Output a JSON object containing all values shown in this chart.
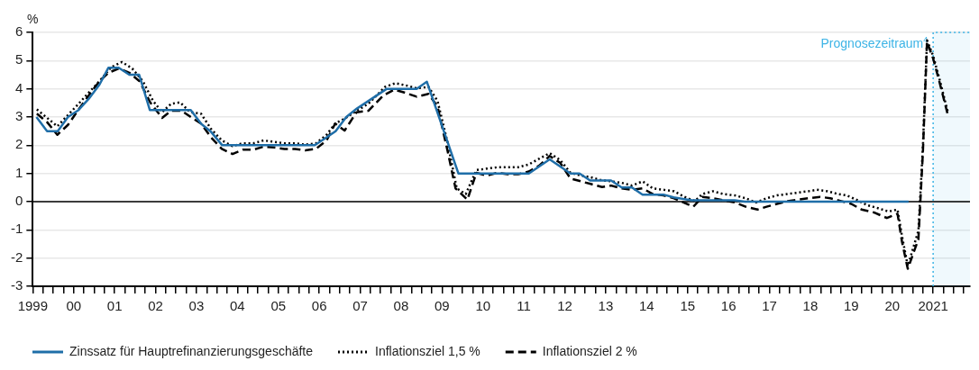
{
  "chart_data": {
    "type": "line",
    "ylabel": "%",
    "xlim": [
      1999,
      2021.9
    ],
    "ylim": [
      -3,
      6
    ],
    "yticks": [
      -3,
      -2,
      -1,
      0,
      1,
      2,
      3,
      4,
      5,
      6
    ],
    "xticks": [
      1999,
      {
        "value": 1999.25,
        "label": null
      },
      {
        "value": 1999.5,
        "label": null
      },
      {
        "value": 1999.75,
        "label": null
      },
      {
        "value": 2000,
        "label": "00"
      },
      {
        "value": 2000.25,
        "label": null
      },
      {
        "value": 2000.5,
        "label": null
      },
      {
        "value": 2000.75,
        "label": null
      },
      {
        "value": 2001,
        "label": "01"
      },
      {
        "value": 2001.25,
        "label": null
      },
      {
        "value": 2001.5,
        "label": null
      },
      {
        "value": 2001.75,
        "label": null
      },
      {
        "value": 2002,
        "label": "02"
      },
      {
        "value": 2002.25,
        "label": null
      },
      {
        "value": 2002.5,
        "label": null
      },
      {
        "value": 2002.75,
        "label": null
      },
      {
        "value": 2003,
        "label": "03"
      },
      {
        "value": 2003.25,
        "label": null
      },
      {
        "value": 2003.5,
        "label": null
      },
      {
        "value": 2003.75,
        "label": null
      },
      {
        "value": 2004,
        "label": "04"
      },
      {
        "value": 2004.25,
        "label": null
      },
      {
        "value": 2004.5,
        "label": null
      },
      {
        "value": 2004.75,
        "label": null
      },
      {
        "value": 2005,
        "label": "05"
      },
      {
        "value": 2005.25,
        "label": null
      },
      {
        "value": 2005.5,
        "label": null
      },
      {
        "value": 2005.75,
        "label": null
      },
      {
        "value": 2006,
        "label": "06"
      },
      {
        "value": 2006.25,
        "label": null
      },
      {
        "value": 2006.5,
        "label": null
      },
      {
        "value": 2006.75,
        "label": null
      },
      {
        "value": 2007,
        "label": "07"
      },
      {
        "value": 2007.25,
        "label": null
      },
      {
        "value": 2007.5,
        "label": null
      },
      {
        "value": 2007.75,
        "label": null
      },
      {
        "value": 2008,
        "label": "08"
      },
      {
        "value": 2008.25,
        "label": null
      },
      {
        "value": 2008.5,
        "label": null
      },
      {
        "value": 2008.75,
        "label": null
      },
      {
        "value": 2009,
        "label": "09"
      },
      {
        "value": 2009.25,
        "label": null
      },
      {
        "value": 2009.5,
        "label": null
      },
      {
        "value": 2009.75,
        "label": null
      },
      {
        "value": 2010,
        "label": "10"
      },
      {
        "value": 2010.25,
        "label": null
      },
      {
        "value": 2010.5,
        "label": null
      },
      {
        "value": 2010.75,
        "label": null
      },
      {
        "value": 2011,
        "label": "11"
      },
      {
        "value": 2011.25,
        "label": null
      },
      {
        "value": 2011.5,
        "label": null
      },
      {
        "value": 2011.75,
        "label": null
      },
      {
        "value": 2012,
        "label": "12"
      },
      {
        "value": 2012.25,
        "label": null
      },
      {
        "value": 2012.5,
        "label": null
      },
      {
        "value": 2012.75,
        "label": null
      },
      {
        "value": 2013,
        "label": "13"
      },
      {
        "value": 2013.25,
        "label": null
      },
      {
        "value": 2013.5,
        "label": null
      },
      {
        "value": 2013.75,
        "label": null
      },
      {
        "value": 2014,
        "label": "14"
      },
      {
        "value": 2014.25,
        "label": null
      },
      {
        "value": 2014.5,
        "label": null
      },
      {
        "value": 2014.75,
        "label": null
      },
      {
        "value": 2015,
        "label": "15"
      },
      {
        "value": 2015.25,
        "label": null
      },
      {
        "value": 2015.5,
        "label": null
      },
      {
        "value": 2015.75,
        "label": null
      },
      {
        "value": 2016,
        "label": "16"
      },
      {
        "value": 2016.25,
        "label": null
      },
      {
        "value": 2016.5,
        "label": null
      },
      {
        "value": 2016.75,
        "label": null
      },
      {
        "value": 2017,
        "label": "17"
      },
      {
        "value": 2017.25,
        "label": null
      },
      {
        "value": 2017.5,
        "label": null
      },
      {
        "value": 2017.75,
        "label": null
      },
      {
        "value": 2018,
        "label": "18"
      },
      {
        "value": 2018.25,
        "label": null
      },
      {
        "value": 2018.5,
        "label": null
      },
      {
        "value": 2018.75,
        "label": null
      },
      {
        "value": 2019,
        "label": "19"
      },
      {
        "value": 2019.25,
        "label": null
      },
      {
        "value": 2019.5,
        "label": null
      },
      {
        "value": 2019.75,
        "label": null
      },
      {
        "value": 2020,
        "label": "20"
      },
      {
        "value": 2020.25,
        "label": null
      },
      {
        "value": 2020.5,
        "label": null
      },
      {
        "value": 2020.75,
        "label": null
      },
      2021,
      {
        "value": 2021.25,
        "label": null
      },
      {
        "value": 2021.5,
        "label": null
      },
      {
        "value": 2021.75,
        "label": null
      }
    ],
    "grid": "y",
    "legend": "bottom left",
    "ref_lines": [
      {
        "axis": "y",
        "value": 0,
        "color": "#000000"
      }
    ],
    "bands": [
      {
        "axis": "x",
        "from": 2021,
        "to": 2021.9,
        "label": "Prognosezeitraum$^{4}$",
        "color": "#3db4e6"
      }
    ],
    "series": [
      {
        "name": "Zinssatz für Hauptrefinanzierungsgeschäfte",
        "color": "#1f6ea8",
        "line_style": "solid",
        "x": [
          1999.09,
          1999.35,
          1999.61,
          1999.86,
          2000.12,
          2000.37,
          2000.63,
          2000.85,
          2001.1,
          2001.36,
          2001.6,
          2001.86,
          2002.86,
          2003.12,
          2003.34,
          2003.63,
          2005.89,
          2006.15,
          2006.4,
          2006.66,
          2006.92,
          2007.65,
          2008.38,
          2008.63,
          2009.4,
          2011.12,
          2011.63,
          2012.14,
          2012.36,
          2012.62,
          2013.13,
          2013.39,
          2013.64,
          2013.9,
          2014.41,
          2014.66,
          2015.1,
          2016.15,
          2016.4,
          2020.4
        ],
        "values": [
          3.0,
          2.5,
          2.5,
          3.0,
          3.25,
          3.65,
          4.15,
          4.75,
          4.75,
          4.5,
          4.5,
          3.25,
          3.25,
          2.75,
          2.5,
          2.0,
          2.0,
          2.25,
          2.5,
          3.0,
          3.3,
          4.0,
          4.0,
          4.25,
          1.0,
          1.0,
          1.5,
          1.0,
          1.0,
          0.75,
          0.75,
          0.5,
          0.5,
          0.25,
          0.25,
          0.15,
          0.05,
          0.05,
          0.0,
          0.0
        ]
      },
      {
        "name": "Inflationsziel 1,5 %",
        "color": "#000000",
        "line_style": "dotted",
        "x": [
          1999.1,
          1999.6,
          1999.86,
          2000.12,
          2000.37,
          2000.63,
          2000.92,
          2001.18,
          2001.43,
          2001.69,
          2001.94,
          2002.16,
          2002.38,
          2002.6,
          2002.85,
          2003.11,
          2003.36,
          2003.62,
          2003.88,
          2004.13,
          2004.39,
          2004.64,
          2004.9,
          2005.15,
          2005.41,
          2005.66,
          2005.92,
          2006.18,
          2006.39,
          2006.65,
          2006.91,
          2007.2,
          2007.61,
          2007.86,
          2008.12,
          2008.38,
          2008.67,
          2008.89,
          2009.14,
          2009.36,
          2009.58,
          2009.84,
          2010.09,
          2010.35,
          2010.6,
          2010.86,
          2011.12,
          2011.37,
          2011.63,
          2011.89,
          2012.14,
          2012.4,
          2012.62,
          2012.87,
          2013.13,
          2013.39,
          2013.64,
          2013.9,
          2014.15,
          2014.41,
          2014.67,
          2014.92,
          2015.18,
          2015.36,
          2015.62,
          2015.87,
          2016.16,
          2016.42,
          2016.67,
          2016.93,
          2017.18,
          2017.44,
          2017.69,
          2017.95,
          2018.16,
          2018.42,
          2018.67,
          2018.89,
          2019.15,
          2019.4,
          2019.65,
          2019.91,
          2020.13,
          2020.24,
          2020.38,
          2020.64,
          2020.75,
          2020.85,
          2021.0,
          2021.15,
          2021.36
        ],
        "values": [
          3.27,
          2.67,
          3.07,
          3.47,
          3.87,
          4.27,
          4.77,
          4.95,
          4.72,
          4.27,
          3.57,
          3.17,
          3.47,
          3.52,
          3.17,
          3.12,
          2.57,
          2.17,
          1.97,
          2.07,
          2.07,
          2.17,
          2.12,
          2.07,
          2.07,
          2.02,
          2.07,
          2.37,
          2.77,
          2.97,
          3.22,
          3.47,
          4.07,
          4.2,
          4.12,
          4.02,
          4.07,
          3.57,
          2.07,
          0.47,
          0.27,
          1.12,
          1.17,
          1.22,
          1.22,
          1.22,
          1.32,
          1.52,
          1.72,
          1.47,
          1.02,
          0.92,
          0.87,
          0.77,
          0.72,
          0.67,
          0.57,
          0.72,
          0.47,
          0.42,
          0.37,
          0.17,
          0.02,
          0.27,
          0.37,
          0.27,
          0.22,
          0.12,
          -0.03,
          0.12,
          0.22,
          0.27,
          0.32,
          0.37,
          0.42,
          0.37,
          0.27,
          0.22,
          0.05,
          -0.13,
          -0.23,
          -0.35,
          -0.28,
          -1.23,
          -2.28,
          -1.03,
          1.97,
          5.72,
          5.17,
          4.37,
          3.17
        ]
      },
      {
        "name": "Inflationsziel 2 %",
        "color": "#000000",
        "line_style": "dashed",
        "x": [
          1999.1,
          1999.35,
          1999.6,
          1999.86,
          2000.12,
          2000.37,
          2000.63,
          2000.85,
          2001.1,
          2001.36,
          2001.61,
          2001.87,
          2002.16,
          2002.38,
          2002.64,
          2002.89,
          2003.11,
          2003.36,
          2003.62,
          2003.88,
          2004.13,
          2004.39,
          2004.64,
          2004.9,
          2005.15,
          2005.41,
          2005.66,
          2005.92,
          2006.18,
          2006.39,
          2006.62,
          2006.91,
          2007.2,
          2007.57,
          2007.83,
          2008.08,
          2008.38,
          2008.67,
          2008.89,
          2009.14,
          2009.33,
          2009.62,
          2009.84,
          2010.09,
          2010.35,
          2010.6,
          2010.86,
          2011.12,
          2011.37,
          2011.63,
          2011.89,
          2012.14,
          2012.4,
          2012.65,
          2012.91,
          2013.13,
          2013.39,
          2013.64,
          2013.9,
          2014.15,
          2014.41,
          2014.67,
          2015.14,
          2015.36,
          2015.62,
          2015.87,
          2016.16,
          2016.42,
          2016.71,
          2016.93,
          2017.18,
          2017.44,
          2017.69,
          2017.95,
          2018.24,
          2018.49,
          2018.75,
          2019.0,
          2019.25,
          2019.55,
          2019.87,
          2020.13,
          2020.24,
          2020.38,
          2020.64,
          2020.75,
          2020.85,
          2021.0,
          2021.15,
          2021.36
        ],
        "values": [
          3.12,
          2.82,
          2.37,
          2.72,
          3.27,
          3.77,
          4.27,
          4.57,
          4.72,
          4.57,
          4.27,
          3.52,
          2.97,
          3.22,
          3.22,
          2.97,
          2.77,
          2.27,
          1.87,
          1.69,
          1.84,
          1.84,
          1.95,
          1.92,
          1.87,
          1.87,
          1.82,
          1.87,
          2.17,
          2.77,
          2.52,
          3.17,
          3.22,
          3.77,
          3.97,
          3.87,
          3.72,
          3.82,
          3.37,
          1.77,
          0.47,
          0.07,
          1.02,
          0.92,
          1.02,
          0.97,
          0.97,
          1.07,
          1.27,
          1.62,
          1.37,
          0.82,
          0.72,
          0.62,
          0.52,
          0.57,
          0.47,
          0.42,
          0.47,
          0.27,
          0.22,
          0.12,
          -0.18,
          0.17,
          0.12,
          0.05,
          -0.03,
          -0.18,
          -0.28,
          -0.18,
          -0.08,
          0.02,
          0.07,
          0.12,
          0.17,
          0.12,
          0.02,
          -0.08,
          -0.28,
          -0.38,
          -0.58,
          -0.43,
          -1.43,
          -2.38,
          -1.33,
          1.77,
          5.67,
          5.07,
          4.27,
          3.07
        ]
      }
    ]
  }
}
